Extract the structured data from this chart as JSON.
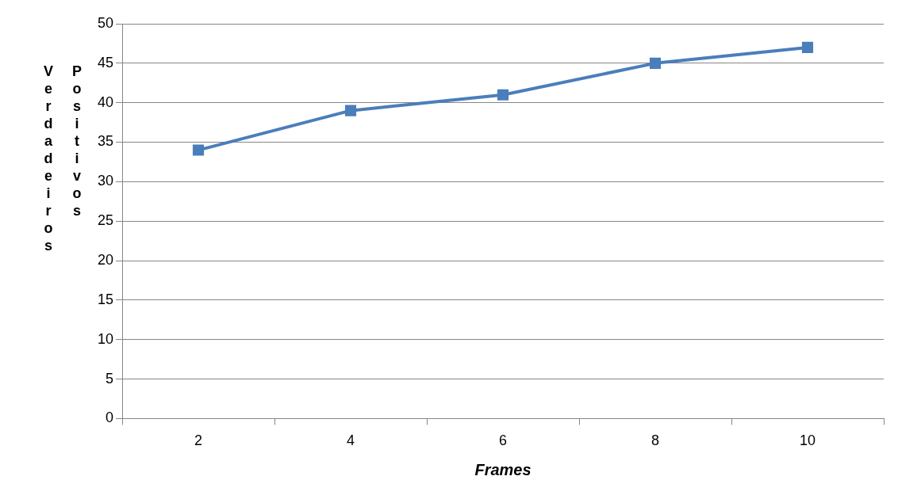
{
  "chart_data": {
    "type": "line",
    "xlabel": "Frames",
    "ylabel": "Verdadeiros Positivos",
    "categories": [
      "2",
      "4",
      "6",
      "8",
      "10"
    ],
    "series": [
      {
        "color": "#4a7ebb",
        "values": [
          34,
          39,
          41,
          45,
          47
        ]
      }
    ],
    "ylim": [
      0,
      50
    ],
    "yticks": [
      0,
      5,
      10,
      15,
      20,
      25,
      30,
      35,
      40,
      45,
      50
    ],
    "grid": "y",
    "marker": "square",
    "line_style": "solid",
    "legend": false
  }
}
